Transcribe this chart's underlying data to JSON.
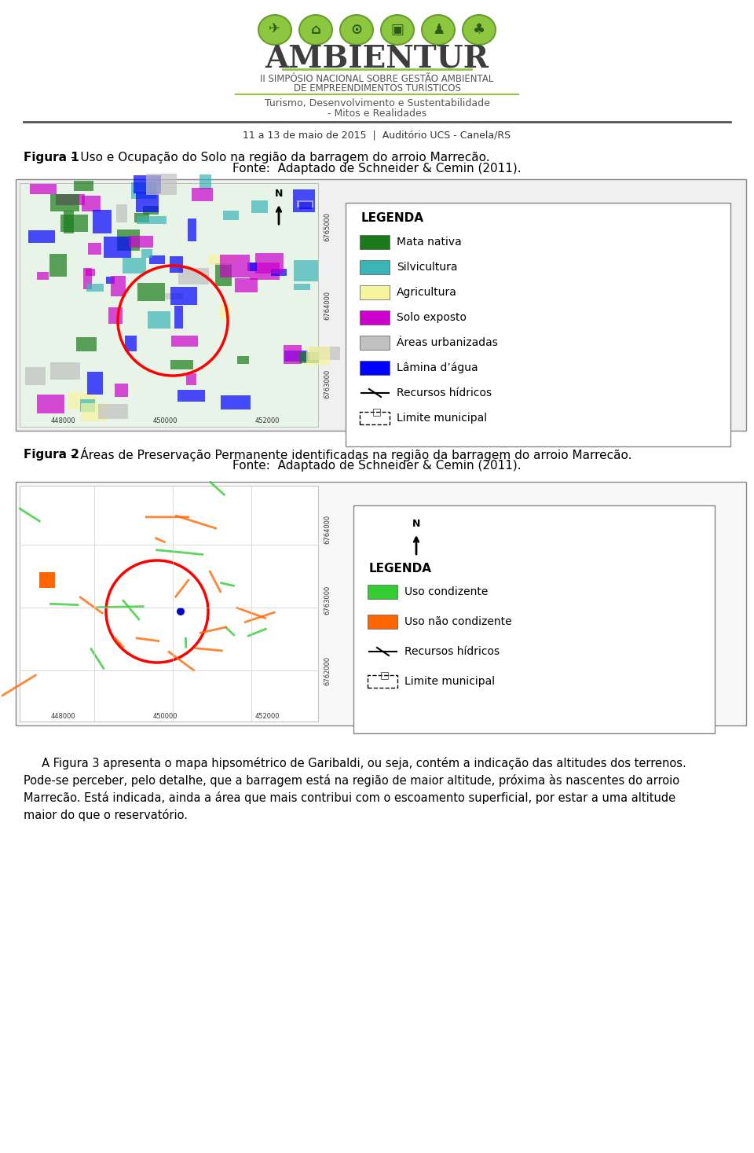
{
  "bg_color": "#ffffff",
  "header": {
    "title": "AMBIENTUR",
    "subtitle1": "II SIMPÓSIO NACIONAL SOBRE GESTÃO AMBIENTAL",
    "subtitle2": "DE EMPREENDIMENTOS TURÍSTICOS",
    "subtitle3": "Turismo, Desenvolvimento e Sustentabilidade",
    "subtitle4": "- Mitos e Realidades",
    "date_line": "11 a 13 de maio de 2015  |  Auditório UCS - Canela/RS"
  },
  "fig1_caption_bold": "Figura 1",
  "fig1_caption_rest": " – Uso e Ocupação do Solo na região da barragem do arroio Marrecão.",
  "fig1_fonte": "Fonte:  Adaptado de Schneider & Cemin (2011).",
  "fig2_caption_bold": "Figura 2",
  "fig2_caption_rest": " – Áreas de Preservação Permanente identificadas na região da barragem do arroio Marrecão.",
  "fig2_fonte": "Fonte:  Adaptado de Schneider & Cemin (2011).",
  "paragraph": "     A Figura 3 apresenta o mapa hipsométrico de Garibaldi, ou seja, contém a indicação das altitudes dos terrenos. Pode-se perceber, pelo detalhe, que a barragem está na região de maior altitude, próxima às nascentes do arroio Marrecão. Está indicada, ainda a área que mais contribui com o escoamento superficial, por estar a uma altitude maior do que o reservatório.",
  "legend1": {
    "title": "LEGENDA",
    "items": [
      {
        "color": "#1a7a1a",
        "label": "Mata nativa"
      },
      {
        "color": "#3ab5b5",
        "label": "Silvicultura"
      },
      {
        "color": "#f5f5a0",
        "label": "Agricultura"
      },
      {
        "color": "#cc00cc",
        "label": "Solo exposto"
      },
      {
        "color": "#c0c0c0",
        "label": "Áreas urbanizadas"
      },
      {
        "color": "#0000ff",
        "label": "Lâmina d’água"
      },
      {
        "color": "#000000",
        "label": "Recursos hídricos",
        "line": true
      },
      {
        "color": "#000000",
        "label": "Limite municipal",
        "dashed": true
      }
    ]
  },
  "legend2": {
    "title": "LEGENDA",
    "items": [
      {
        "color": "#33cc33",
        "label": "Uso condizente"
      },
      {
        "color": "#ff6600",
        "label": "Uso não condizente"
      },
      {
        "color": "#000000",
        "label": "Recursos hídricos",
        "line": true
      },
      {
        "color": "#000000",
        "label": "Limite municipal",
        "dashed": true
      }
    ]
  }
}
